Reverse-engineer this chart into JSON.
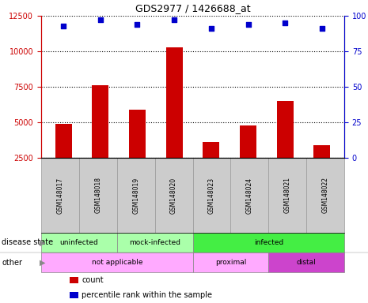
{
  "title": "GDS2977 / 1426688_at",
  "samples": [
    "GSM148017",
    "GSM148018",
    "GSM148019",
    "GSM148020",
    "GSM148023",
    "GSM148024",
    "GSM148021",
    "GSM148022"
  ],
  "counts": [
    4900,
    7600,
    5900,
    10300,
    3600,
    4800,
    6500,
    3400
  ],
  "percentile_ranks": [
    93,
    97,
    94,
    97,
    91,
    94,
    95,
    91
  ],
  "ylim_left": [
    2500,
    12500
  ],
  "ylim_right": [
    0,
    100
  ],
  "yticks_left": [
    2500,
    5000,
    7500,
    10000,
    12500
  ],
  "yticks_right": [
    0,
    25,
    50,
    75,
    100
  ],
  "bar_color": "#cc0000",
  "dot_color": "#0000cc",
  "bar_width": 0.45,
  "disease_state_labels": [
    {
      "label": "uninfected",
      "span": [
        0,
        2
      ],
      "color": "#aaffaa"
    },
    {
      "label": "mock-infected",
      "span": [
        2,
        4
      ],
      "color": "#aaffaa"
    },
    {
      "label": "infected",
      "span": [
        4,
        8
      ],
      "color": "#44ee44"
    }
  ],
  "other_labels": [
    {
      "label": "not applicable",
      "span": [
        0,
        4
      ],
      "color": "#ffaaff"
    },
    {
      "label": "proximal",
      "span": [
        4,
        6
      ],
      "color": "#ffaaff"
    },
    {
      "label": "distal",
      "span": [
        6,
        8
      ],
      "color": "#cc44cc"
    }
  ],
  "row_labels": [
    "disease state",
    "other"
  ],
  "legend_items": [
    {
      "color": "#cc0000",
      "label": "count"
    },
    {
      "color": "#0000cc",
      "label": "percentile rank within the sample"
    }
  ],
  "background_color": "#ffffff",
  "plot_bg_color": "#ffffff",
  "axis_color_left": "#cc0000",
  "axis_color_right": "#0000cc",
  "sample_box_color": "#cccccc",
  "sample_box_edge": "#999999"
}
